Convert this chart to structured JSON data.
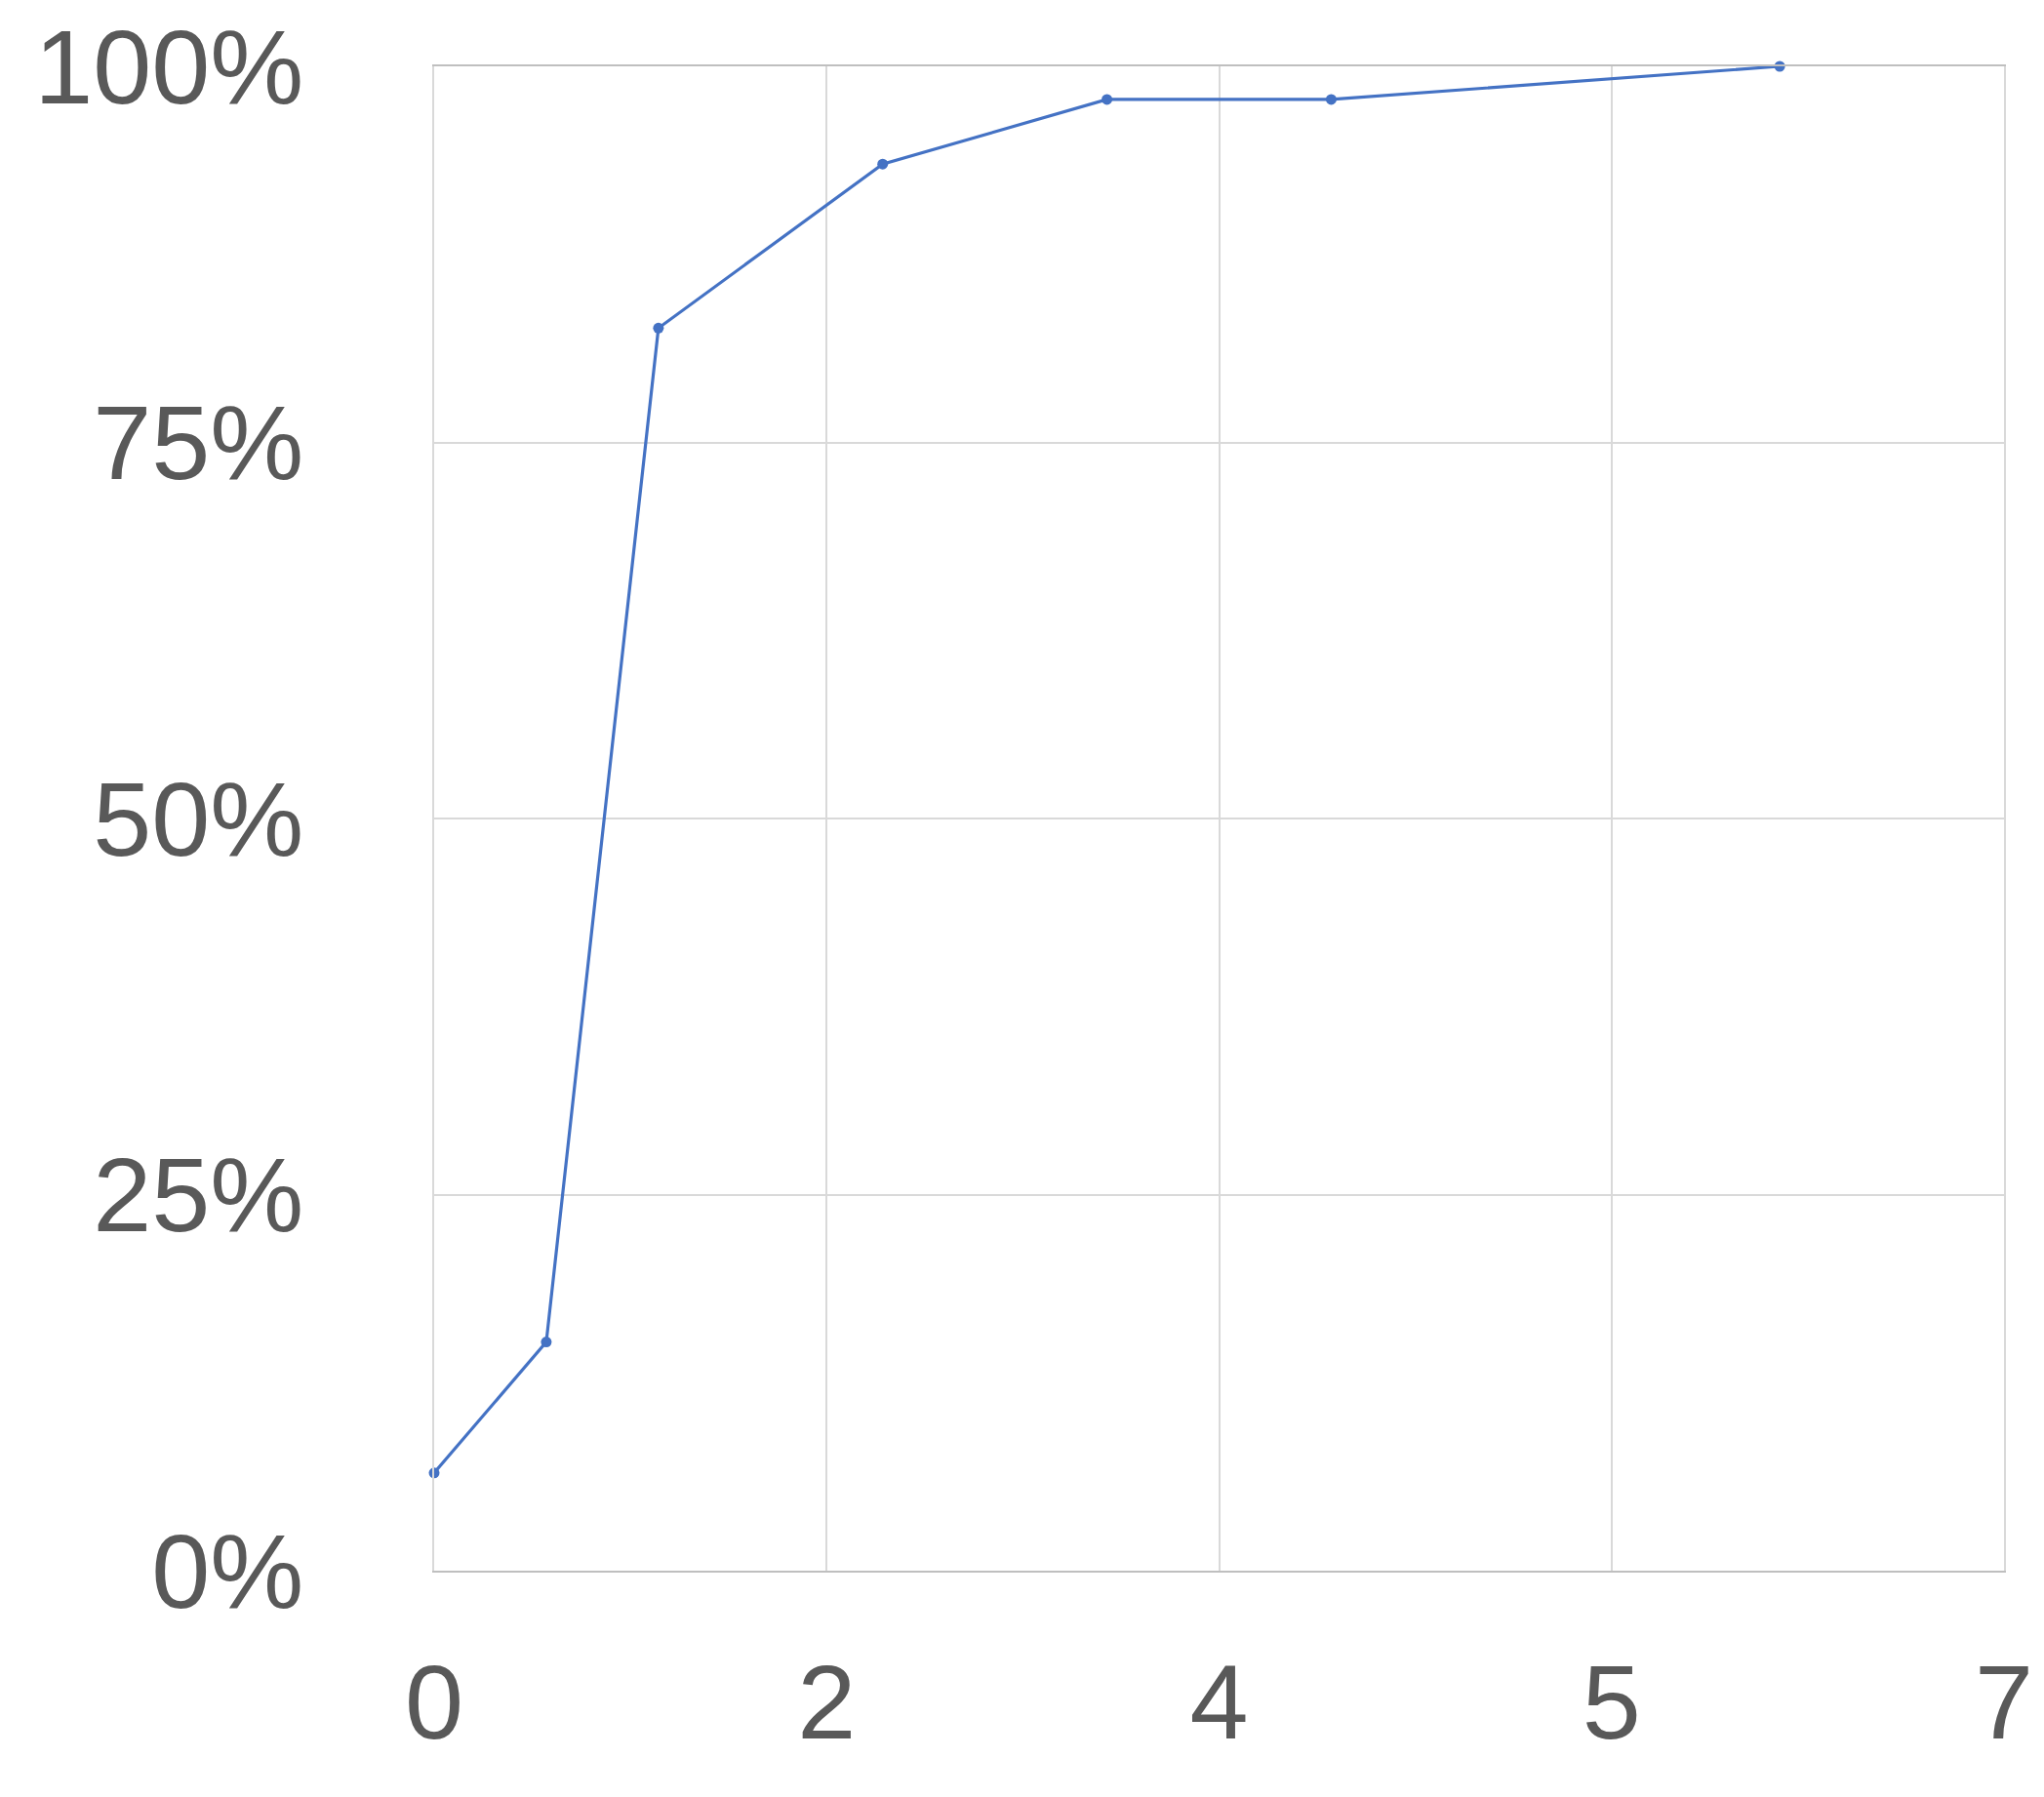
{
  "chart_data": {
    "type": "line",
    "x": [
      0,
      0.5,
      1,
      2,
      3,
      4,
      6
    ],
    "series": [
      {
        "color": "#4472c4",
        "values": [
          6.5,
          15.2,
          82.6,
          93.5,
          97.8,
          97.8,
          100
        ]
      }
    ],
    "xlim": [
      0,
      7
    ],
    "xticks": [
      0,
      {
        "value": 1.75,
        "label": "2"
      },
      {
        "value": 3.5,
        "label": "4"
      },
      {
        "value": 5.25,
        "label": "5"
      },
      7
    ],
    "ylim": [
      0,
      100
    ],
    "yticks": [
      {
        "value": 0,
        "label": "0%"
      },
      {
        "value": 25,
        "label": "25%"
      },
      {
        "value": 50,
        "label": "50%"
      },
      {
        "value": 75,
        "label": "75%"
      },
      {
        "value": 100,
        "label": "100%"
      }
    ],
    "grid": true,
    "marker": "circle",
    "line_style": "solid"
  }
}
